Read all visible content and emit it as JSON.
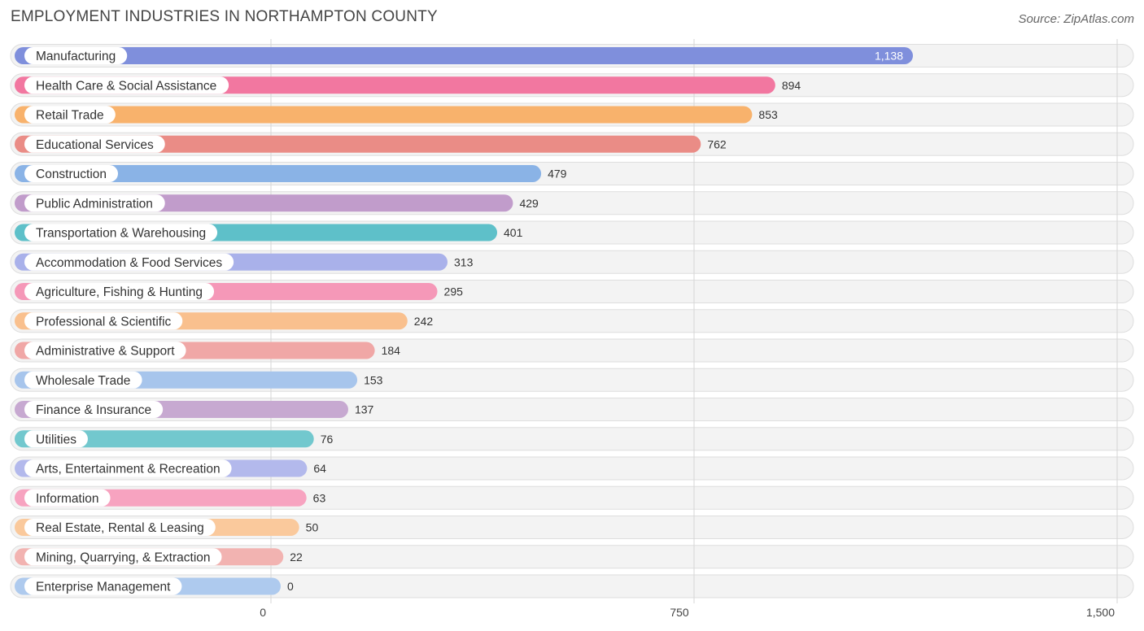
{
  "chart_data": {
    "type": "bar",
    "orientation": "horizontal",
    "title": "EMPLOYMENT INDUSTRIES IN NORTHAMPTON COUNTY",
    "source": "Source: ZipAtlas.com",
    "xlim": [
      0,
      1500
    ],
    "ticks": [
      0,
      750,
      1500
    ],
    "tick_labels": [
      "0",
      "750",
      "1,500"
    ],
    "categories": [
      "Manufacturing",
      "Health Care & Social Assistance",
      "Retail Trade",
      "Educational Services",
      "Construction",
      "Public Administration",
      "Transportation & Warehousing",
      "Accommodation & Food Services",
      "Agriculture, Fishing & Hunting",
      "Professional & Scientific",
      "Administrative & Support",
      "Wholesale Trade",
      "Finance & Insurance",
      "Utilities",
      "Arts, Entertainment & Recreation",
      "Information",
      "Real Estate, Rental & Leasing",
      "Mining, Quarrying, & Extraction",
      "Enterprise Management"
    ],
    "values": [
      1138,
      894,
      853,
      762,
      479,
      429,
      401,
      313,
      295,
      242,
      184,
      153,
      137,
      76,
      64,
      63,
      50,
      22,
      0
    ],
    "value_labels": [
      "1,138",
      "894",
      "853",
      "762",
      "479",
      "429",
      "401",
      "313",
      "295",
      "242",
      "184",
      "153",
      "137",
      "76",
      "64",
      "63",
      "50",
      "22",
      "0"
    ],
    "colors": [
      "#7f8fdc",
      "#f277a0",
      "#f8b26c",
      "#ea8c86",
      "#8ab3e6",
      "#c19ccb",
      "#5ec0c9",
      "#a9b1ea",
      "#f598b8",
      "#f9c08e",
      "#f0a7a6",
      "#a7c5ec",
      "#c7a9d1",
      "#72c8ce",
      "#b3b9ec",
      "#f7a3c0",
      "#fac99c",
      "#f2b3b1",
      "#aecaee"
    ]
  }
}
